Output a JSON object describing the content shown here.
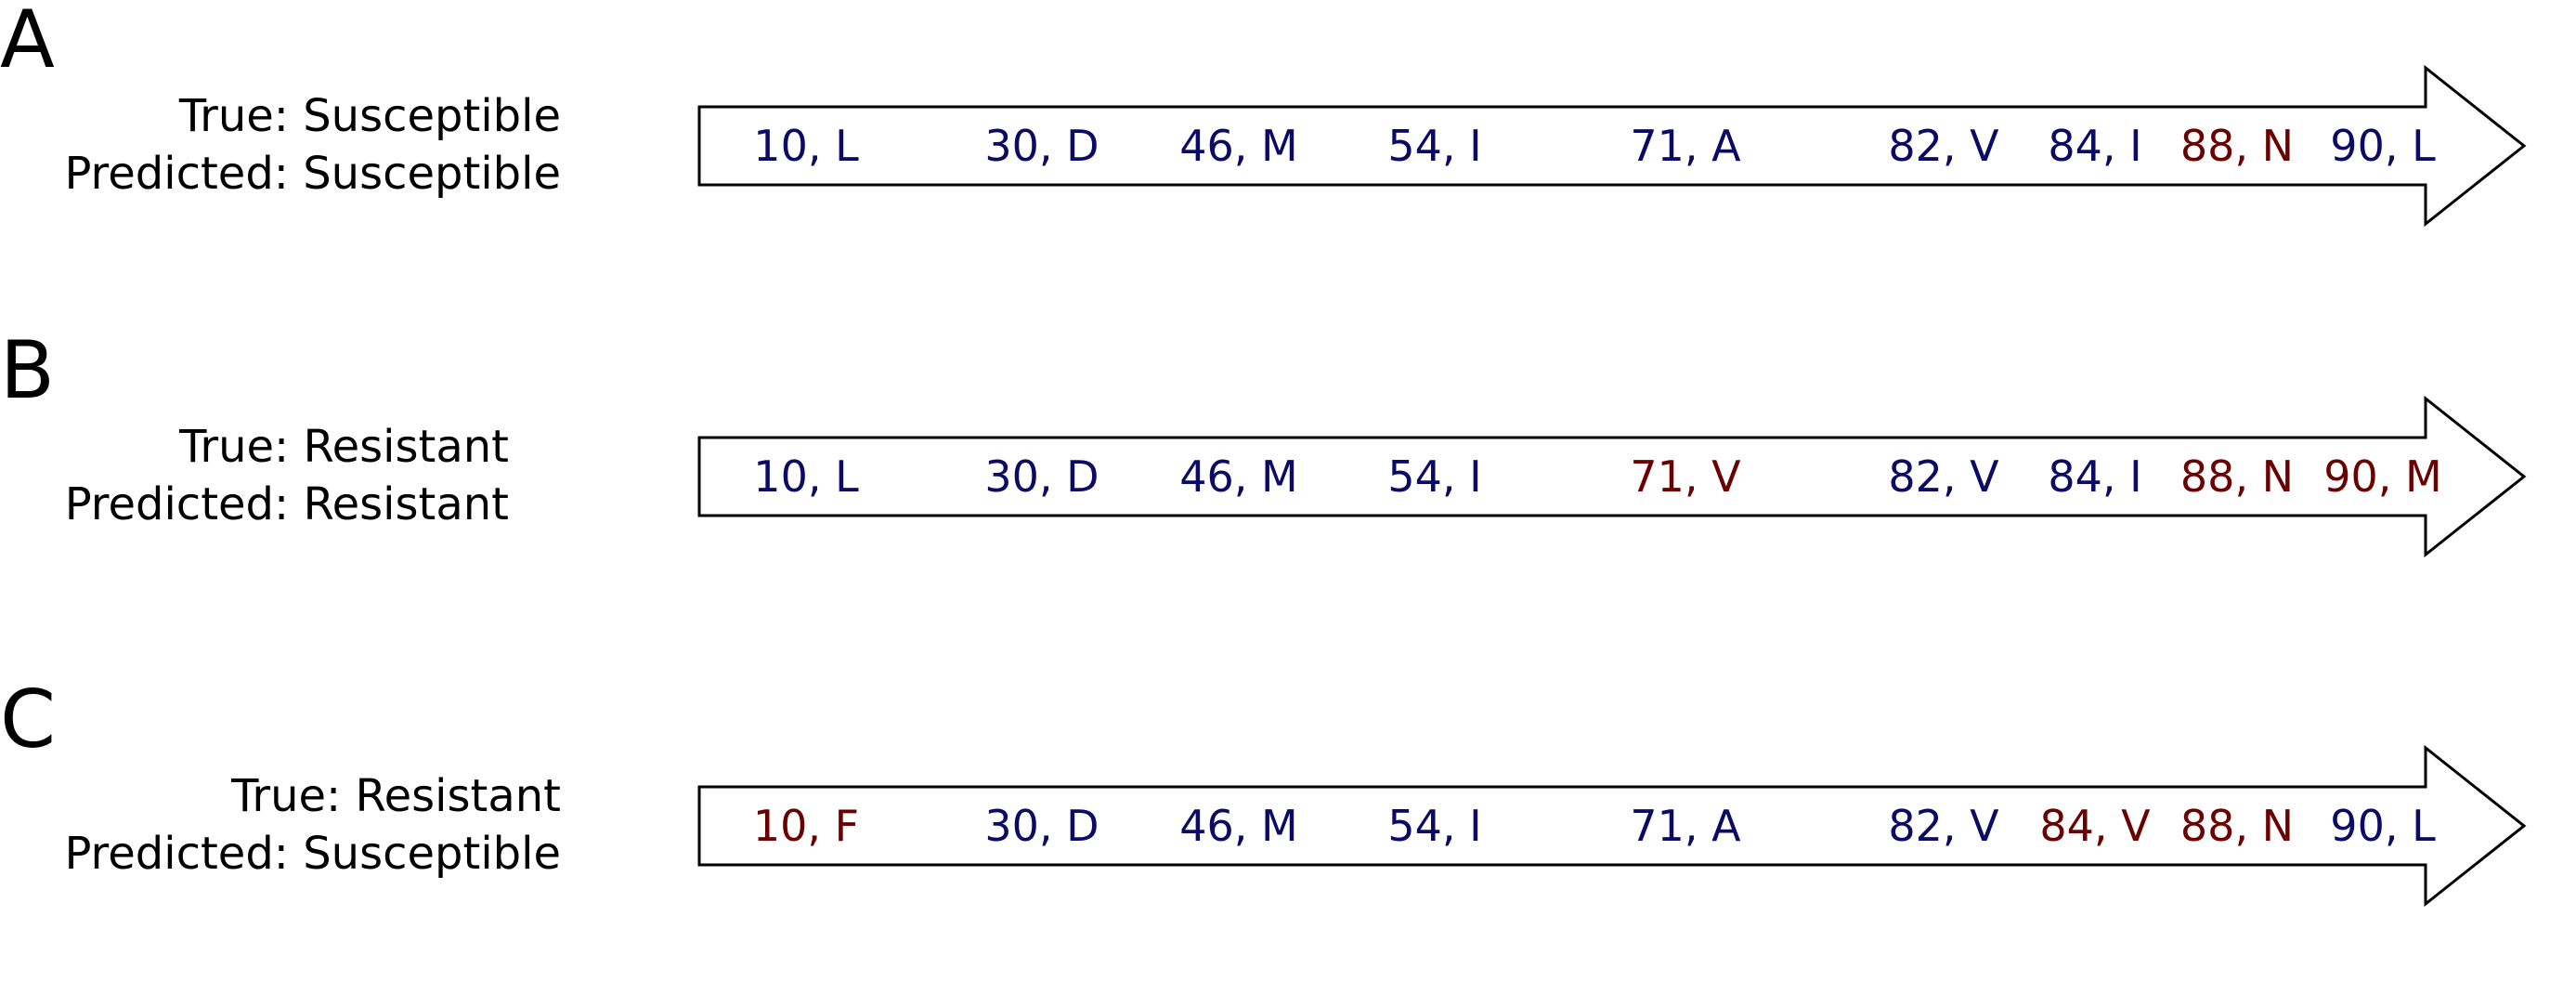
{
  "colors": {
    "wildtype": "#0b0b66",
    "mutant": "#6b0000",
    "outline": "#000000"
  },
  "panels": [
    {
      "letter": "A",
      "true_label": "True: Susceptible",
      "predicted_label": "Predicted: Susceptible",
      "positions": [
        {
          "text": "10, L",
          "status": "wildtype"
        },
        {
          "text": "30, D",
          "status": "wildtype"
        },
        {
          "text": "46, M",
          "status": "wildtype"
        },
        {
          "text": "54, I",
          "status": "wildtype"
        },
        {
          "text": "71, A",
          "status": "wildtype"
        },
        {
          "text": "82, V",
          "status": "wildtype"
        },
        {
          "text": "84, I",
          "status": "wildtype"
        },
        {
          "text": "88, N",
          "status": "mutant"
        },
        {
          "text": "90, L",
          "status": "wildtype"
        }
      ]
    },
    {
      "letter": "B",
      "true_label": "True: Resistant",
      "predicted_label": "Predicted: Resistant",
      "positions": [
        {
          "text": "10, L",
          "status": "wildtype"
        },
        {
          "text": "30, D",
          "status": "wildtype"
        },
        {
          "text": "46, M",
          "status": "wildtype"
        },
        {
          "text": "54, I",
          "status": "wildtype"
        },
        {
          "text": "71, V",
          "status": "mutant"
        },
        {
          "text": "82, V",
          "status": "wildtype"
        },
        {
          "text": "84, I",
          "status": "wildtype"
        },
        {
          "text": "88, N",
          "status": "mutant"
        },
        {
          "text": "90, M",
          "status": "mutant"
        }
      ]
    },
    {
      "letter": "C",
      "true_label": "True: Resistant",
      "predicted_label": "Predicted: Susceptible",
      "positions": [
        {
          "text": "10, F",
          "status": "mutant"
        },
        {
          "text": "30, D",
          "status": "wildtype"
        },
        {
          "text": "46, M",
          "status": "wildtype"
        },
        {
          "text": "54, I",
          "status": "wildtype"
        },
        {
          "text": "71, A",
          "status": "wildtype"
        },
        {
          "text": "82, V",
          "status": "wildtype"
        },
        {
          "text": "84, V",
          "status": "mutant"
        },
        {
          "text": "88, N",
          "status": "mutant"
        },
        {
          "text": "90, L",
          "status": "wildtype"
        }
      ]
    }
  ]
}
